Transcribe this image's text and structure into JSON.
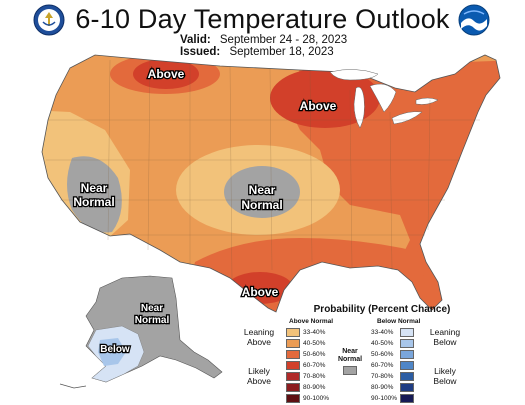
{
  "title": "6-10 Day Temperature Outlook",
  "valid_label": "Valid:",
  "valid_value": "September 24 - 28, 2023",
  "issued_label": "Issued:",
  "issued_value": "September 18, 2023",
  "logos": {
    "left": "commerce-seal-icon",
    "right": "noaa-logo-icon"
  },
  "map_labels": {
    "above_north": "Above",
    "above_great_lakes": "Above",
    "above_texas": "Above",
    "near_normal_west_1": "Near",
    "near_normal_west_2": "Normal",
    "near_normal_central_1": "Near",
    "near_normal_central_2": "Normal",
    "near_normal_alaska_1": "Near",
    "near_normal_alaska_2": "Normal",
    "below_alaska": "Below"
  },
  "legend": {
    "title": "Probability (Percent Chance)",
    "above_header": "Above Normal",
    "below_header": "Below Normal",
    "near_header": "Near Normal",
    "leaning_above": "Leaning Above",
    "likely_above": "Likely Above",
    "leaning_below": "Leaning Below",
    "likely_below": "Likely Below",
    "above_ranges": [
      "33-40%",
      "40-50%",
      "50-60%",
      "60-70%",
      "70-80%",
      "80-90%",
      "90-100%"
    ],
    "below_ranges": [
      "33-40%",
      "40-50%",
      "50-60%",
      "60-70%",
      "70-80%",
      "80-90%",
      "90-100%"
    ],
    "above_colors": [
      "#f2c27a",
      "#eb9c55",
      "#e36a3c",
      "#d2402a",
      "#b02a29",
      "#8c1d20",
      "#5e0f12"
    ],
    "below_colors": [
      "#d6e3f5",
      "#a8c6ea",
      "#7aa6db",
      "#4f86c7",
      "#2c5da3",
      "#1f3d83",
      "#161a55"
    ],
    "near_color": "#a3a3a3"
  }
}
